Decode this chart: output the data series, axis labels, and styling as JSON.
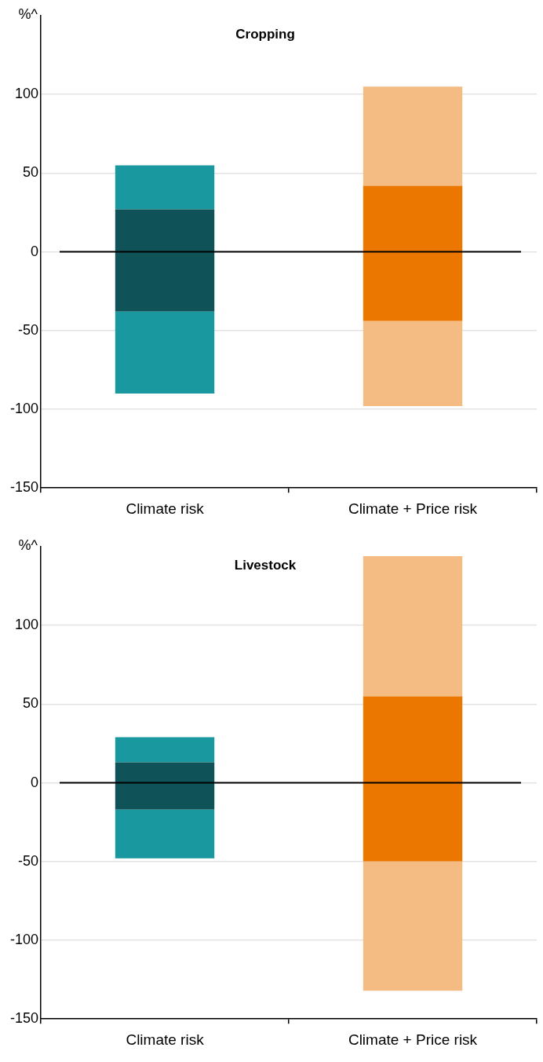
{
  "chart_data": [
    {
      "type": "bar",
      "title": "Cropping",
      "ylabel": "%^",
      "categories": [
        "Climate risk",
        "Climate + Price risk"
      ],
      "series": [
        {
          "colors": [
            "#1a98a0",
            "#f4bb83"
          ],
          "base": [
            -90,
            -98
          ],
          "values": [
            52,
            54
          ]
        },
        {
          "colors": [
            "#0f5358",
            "#ec7700"
          ],
          "base": [
            -38,
            -44
          ],
          "values": [
            65,
            86
          ]
        },
        {
          "colors": [
            "#1a98a0",
            "#f4bb83"
          ],
          "base": [
            27,
            42
          ],
          "values": [
            28,
            63
          ]
        }
      ],
      "ylim": [
        -150,
        150
      ],
      "yticks": [
        -150,
        -100,
        -50,
        0,
        50,
        100
      ],
      "grid": "y",
      "legend": false,
      "ref_lines": [
        {
          "axis": "y",
          "value": 0,
          "color": "#000000"
        }
      ]
    },
    {
      "type": "bar",
      "title": "Livestock",
      "ylabel": "%^",
      "categories": [
        "Climate risk",
        "Climate + Price risk"
      ],
      "series": [
        {
          "colors": [
            "#1a98a0",
            "#f4bb83"
          ],
          "base": [
            -48,
            -132
          ],
          "values": [
            31,
            82
          ]
        },
        {
          "colors": [
            "#0f5358",
            "#ec7700"
          ],
          "base": [
            -17,
            -50
          ],
          "values": [
            30,
            105
          ]
        },
        {
          "colors": [
            "#1a98a0",
            "#f4bb83"
          ],
          "base": [
            13,
            55
          ],
          "values": [
            16,
            89
          ]
        }
      ],
      "ylim": [
        -150,
        150
      ],
      "yticks": [
        -150,
        -100,
        -50,
        0,
        50,
        100
      ],
      "grid": "y",
      "legend": false,
      "ref_lines": [
        {
          "axis": "y",
          "value": 0,
          "color": "#000000"
        }
      ]
    }
  ]
}
